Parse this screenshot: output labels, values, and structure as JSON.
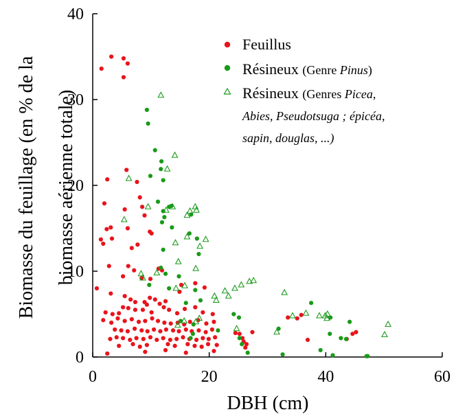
{
  "chart_data": {
    "type": "scatter",
    "xlabel": "DBH (cm)",
    "ylabel_lines": [
      "Biomasse du feuillage (en % de la",
      "biomasse aérienne totale)"
    ],
    "xlim": [
      0,
      60
    ],
    "ylim": [
      0,
      40
    ],
    "x_ticks": [
      "0",
      "20",
      "40",
      "60"
    ],
    "y_ticks": [
      "0",
      "10",
      "20",
      "30",
      "40"
    ],
    "legend": {
      "placement": "top-right",
      "feuillus": "Feuillus",
      "pinus_name": "Résineux",
      "pinus_note_pre": "(Genre ",
      "pinus_note_italic": "Pinus",
      "pinus_note_post": ")",
      "other_name": "Résineux",
      "other_l1_pre": "(Genres ",
      "other_l1_italic": "Picea,",
      "other_l2": "Abies, Pseudotsuga ; épicéa,",
      "other_l3": "sapin, douglas, ...)"
    },
    "colors": {
      "feuillus": "#e8141c",
      "pinus": "#1a9a1a",
      "other": "#1a9a1a"
    },
    "series": [
      {
        "key": "feuillus",
        "marker": "filled-circle",
        "points": [
          [
            1.5,
            33.6
          ],
          [
            3.2,
            35
          ],
          [
            5.3,
            34.8
          ],
          [
            6,
            34.2
          ],
          [
            5.3,
            32.6
          ],
          [
            2.5,
            20.7
          ],
          [
            5.8,
            21.8
          ],
          [
            2,
            17.9
          ],
          [
            5.5,
            17.2
          ],
          [
            7.6,
            20.4
          ],
          [
            8.1,
            18.6
          ],
          [
            8.5,
            17.5
          ],
          [
            8.9,
            16.5
          ],
          [
            3.1,
            15.1
          ],
          [
            2.4,
            14.9
          ],
          [
            3.3,
            13.8
          ],
          [
            1.4,
            13.7
          ],
          [
            1.8,
            13.2
          ],
          [
            6,
            15
          ],
          [
            9.8,
            14.6
          ],
          [
            10.1,
            14.4
          ],
          [
            6.7,
            12.7
          ],
          [
            7.7,
            13.1
          ],
          [
            2.8,
            10.6
          ],
          [
            6.1,
            10.6
          ],
          [
            7.1,
            10.1
          ],
          [
            5.2,
            9.4
          ],
          [
            8.4,
            9.2
          ],
          [
            9.9,
            9.1
          ],
          [
            11.3,
            10.3
          ],
          [
            11.9,
            10.1
          ],
          [
            3.1,
            7.4
          ],
          [
            0.7,
            8
          ],
          [
            5.5,
            7.1
          ],
          [
            6.5,
            6.7
          ],
          [
            7.3,
            6.4
          ],
          [
            8.9,
            6.4
          ],
          [
            9.3,
            6.1
          ],
          [
            9.8,
            6.9
          ],
          [
            10.7,
            6.7
          ],
          [
            11.5,
            6.2
          ],
          [
            12.5,
            6.5
          ],
          [
            15.2,
            8.4
          ],
          [
            14.9,
            7.6
          ],
          [
            17.6,
            8.6
          ],
          [
            19.2,
            8.1
          ],
          [
            2.2,
            5.2
          ],
          [
            3.4,
            5
          ],
          [
            4.5,
            5.1
          ],
          [
            5.2,
            5.8
          ],
          [
            6.1,
            5.7
          ],
          [
            7.3,
            5.5
          ],
          [
            8.6,
            5.5
          ],
          [
            10.1,
            5.2
          ],
          [
            12.2,
            5.8
          ],
          [
            13.1,
            5.5
          ],
          [
            14.5,
            5.1
          ],
          [
            15.8,
            5.6
          ],
          [
            17.6,
            5.8
          ],
          [
            18.9,
            5.2
          ],
          [
            20.6,
            5
          ],
          [
            1.8,
            4.3
          ],
          [
            3.2,
            4
          ],
          [
            4.3,
            4.5
          ],
          [
            5.5,
            4.2
          ],
          [
            6.7,
            4.4
          ],
          [
            7.9,
            4.1
          ],
          [
            9,
            4.2
          ],
          [
            10.2,
            4.5
          ],
          [
            11.2,
            4.2
          ],
          [
            12.3,
            4
          ],
          [
            13.4,
            3.9
          ],
          [
            14.6,
            4
          ],
          [
            15.7,
            3.8
          ],
          [
            16.7,
            4.1
          ],
          [
            18.1,
            4.3
          ],
          [
            19.5,
            3.9
          ],
          [
            20.8,
            4.1
          ],
          [
            3.8,
            3.2
          ],
          [
            4.9,
            3.1
          ],
          [
            6,
            3
          ],
          [
            7.2,
            3.3
          ],
          [
            8.4,
            3.1
          ],
          [
            9.4,
            3
          ],
          [
            10.5,
            3.2
          ],
          [
            11.6,
            3
          ],
          [
            12.6,
            3.2
          ],
          [
            13.8,
            3.1
          ],
          [
            14.8,
            3
          ],
          [
            16,
            3.2
          ],
          [
            17,
            3
          ],
          [
            18.2,
            3.1
          ],
          [
            19.4,
            2.9
          ],
          [
            20.5,
            3.2
          ],
          [
            3,
            2.1
          ],
          [
            4.1,
            2.3
          ],
          [
            5.2,
            2.2
          ],
          [
            6.4,
            2
          ],
          [
            7.5,
            2.2
          ],
          [
            8.7,
            2.1
          ],
          [
            9.9,
            2.3
          ],
          [
            11,
            2
          ],
          [
            12.1,
            2.2
          ],
          [
            13.3,
            2
          ],
          [
            14.4,
            2.1
          ],
          [
            15.5,
            2.3
          ],
          [
            16.6,
            2.1
          ],
          [
            17.8,
            2
          ],
          [
            18.9,
            2.2
          ],
          [
            19.9,
            2.1
          ],
          [
            21,
            2.3
          ],
          [
            4.5,
            1.3
          ],
          [
            6.9,
            1.5
          ],
          [
            8.1,
            1.2
          ],
          [
            9.3,
            1.4
          ],
          [
            12.9,
            1.5
          ],
          [
            14.1,
            1.3
          ],
          [
            16.3,
            1.5
          ],
          [
            17.5,
            1.3
          ],
          [
            18.7,
            1.2
          ],
          [
            19.8,
            1.5
          ],
          [
            21.3,
            1.4
          ],
          [
            2.5,
            0.4
          ],
          [
            9,
            0.6
          ],
          [
            12.5,
            0.8
          ],
          [
            16,
            0.5
          ],
          [
            20.8,
            0.7
          ],
          [
            24.5,
            2.8
          ],
          [
            25.2,
            2.7
          ],
          [
            25.7,
            2.2
          ],
          [
            25.9,
            1.8
          ],
          [
            26.2,
            1.1
          ],
          [
            26.4,
            1.5
          ],
          [
            27.4,
            2.9
          ],
          [
            33.5,
            4.6
          ],
          [
            35.1,
            4.5
          ],
          [
            35.8,
            4.9
          ],
          [
            36.9,
            2
          ],
          [
            43.6,
            2.1
          ],
          [
            44.6,
            2.7
          ],
          [
            45.2,
            2.9
          ]
        ]
      },
      {
        "key": "pinus",
        "marker": "filled-circle",
        "points": [
          [
            9.3,
            28.8
          ],
          [
            9.5,
            27.2
          ],
          [
            10.7,
            24.1
          ],
          [
            11.8,
            22.8
          ],
          [
            11.7,
            21.9
          ],
          [
            9.9,
            21.1
          ],
          [
            12.1,
            20.6
          ],
          [
            11.2,
            18.1
          ],
          [
            13.1,
            17.5
          ],
          [
            13.5,
            17.6
          ],
          [
            12.1,
            17
          ],
          [
            12.3,
            16.3
          ],
          [
            16.9,
            16.6
          ],
          [
            11.9,
            15.7
          ],
          [
            13.6,
            15.1
          ],
          [
            16.6,
            14.4
          ],
          [
            17.9,
            13.8
          ],
          [
            12.1,
            12.5
          ],
          [
            18.2,
            12
          ],
          [
            11.7,
            10.4
          ],
          [
            12.5,
            9.7
          ],
          [
            14.8,
            9.4
          ],
          [
            9.7,
            8.4
          ],
          [
            13.1,
            8
          ],
          [
            16,
            6.3
          ],
          [
            17.6,
            7.8
          ],
          [
            18.5,
            6.6
          ],
          [
            15.1,
            4.2
          ],
          [
            17.3,
            3.8
          ],
          [
            17.2,
            2.7
          ],
          [
            16.8,
            2.2
          ],
          [
            21.5,
            3.1
          ],
          [
            24.2,
            5
          ],
          [
            25.1,
            4.6
          ],
          [
            25.2,
            2.2
          ],
          [
            25.6,
            1.5
          ],
          [
            26.6,
            0.5
          ],
          [
            31.9,
            3.3
          ],
          [
            32.6,
            0.3
          ],
          [
            37.5,
            6.3
          ],
          [
            39.1,
            0.8
          ],
          [
            40.7,
            2.7
          ],
          [
            40.8,
            4.6
          ],
          [
            41.2,
            0.2
          ],
          [
            42.6,
            2.2
          ],
          [
            43.5,
            2.1
          ],
          [
            44.1,
            4.1
          ],
          [
            47,
            0.1
          ],
          [
            47.2,
            0.1
          ]
        ]
      },
      {
        "key": "other",
        "marker": "open-triangle",
        "points": [
          [
            11.7,
            30.5
          ],
          [
            6.2,
            20.8
          ],
          [
            14.1,
            23.5
          ],
          [
            12.8,
            21.9
          ],
          [
            13.7,
            17.5
          ],
          [
            17.6,
            17.5
          ],
          [
            17.8,
            17.1
          ],
          [
            16.7,
            17
          ],
          [
            16.2,
            16.5
          ],
          [
            9.5,
            17.5
          ],
          [
            12.6,
            17.1
          ],
          [
            5.4,
            16
          ],
          [
            14.2,
            13.3
          ],
          [
            16.2,
            14
          ],
          [
            19.4,
            13.7
          ],
          [
            18.4,
            12.9
          ],
          [
            14.7,
            11.1
          ],
          [
            17.7,
            10.3
          ],
          [
            11,
            9.8
          ],
          [
            8.3,
            9.7
          ],
          [
            8.6,
            9.2
          ],
          [
            14.3,
            8
          ],
          [
            15.8,
            8.3
          ],
          [
            20.9,
            7.1
          ],
          [
            21.2,
            6.6
          ],
          [
            22.7,
            7.7
          ],
          [
            23.3,
            7.1
          ],
          [
            24.4,
            8
          ],
          [
            25.5,
            8.4
          ],
          [
            26.9,
            8.8
          ],
          [
            27.6,
            8.9
          ],
          [
            18.3,
            4.5
          ],
          [
            17.7,
            4.1
          ],
          [
            14.6,
            3.7
          ],
          [
            15.7,
            4.2
          ],
          [
            24.7,
            3.3
          ],
          [
            32.9,
            7.5
          ],
          [
            31.6,
            2.9
          ],
          [
            34.3,
            4.8
          ],
          [
            36.6,
            5.1
          ],
          [
            38.9,
            4.8
          ],
          [
            39.9,
            4.8
          ],
          [
            40.2,
            4.5
          ],
          [
            40.3,
            5
          ],
          [
            50.1,
            2.6
          ],
          [
            50.7,
            3.8
          ]
        ]
      }
    ]
  }
}
